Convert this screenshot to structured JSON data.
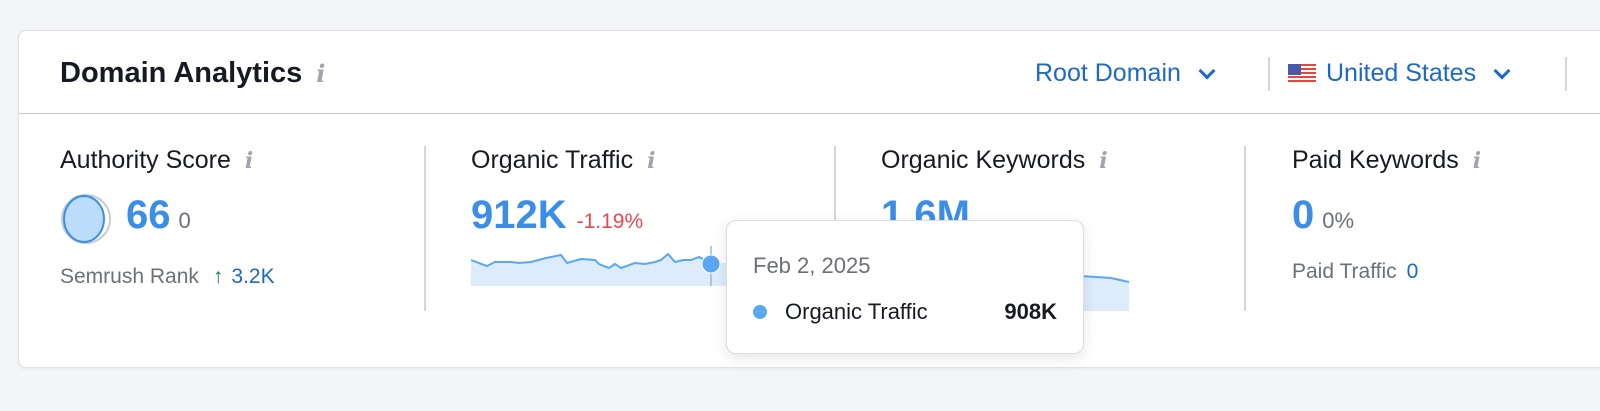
{
  "header": {
    "title": "Domain Analytics",
    "scope_dropdown": "Root Domain",
    "country_dropdown": "United States"
  },
  "metrics": [
    {
      "label": "Authority Score",
      "value": "66",
      "change": "0",
      "footer_label": "Semrush Rank",
      "footer_value": "3.2K",
      "footer_trend": "up"
    },
    {
      "label": "Organic Traffic",
      "value": "912K",
      "change": "-1.19%"
    },
    {
      "label": "Organic Keywords",
      "value": "1.6M"
    },
    {
      "label": "Paid Keywords",
      "value": "0",
      "change": "0%",
      "footer_label": "Paid Traffic",
      "footer_value": "0"
    }
  ],
  "tooltip": {
    "date": "Feb 2, 2025",
    "series": "Organic Traffic",
    "value": "908K"
  },
  "colors": {
    "accent": "#3b8ee8",
    "link": "#1d68c8",
    "negative": "#e8474d",
    "positive": "#1b7a49"
  }
}
